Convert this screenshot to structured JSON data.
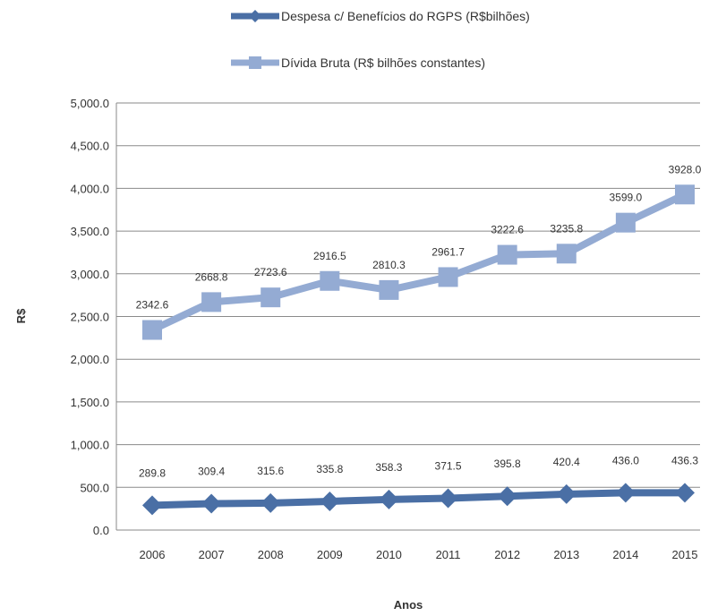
{
  "chart_data": {
    "type": "line",
    "title": "",
    "xlabel": "Anos",
    "ylabel": "R$",
    "ylim": [
      0,
      5000
    ],
    "yticks": [
      "0.0",
      "500.0",
      "1,000.0",
      "1,500.0",
      "2,000.0",
      "2,500.0",
      "3,000.0",
      "3,500.0",
      "4,000.0",
      "4,500.0",
      "5,000.0"
    ],
    "categories": [
      "2006",
      "2007",
      "2008",
      "2009",
      "2010",
      "2011",
      "2012",
      "2013",
      "2014",
      "2015"
    ],
    "grid": "horizontal",
    "legend_position": "top",
    "series": [
      {
        "name": "Despesa c/ Benefícios do RGPS (R$bilhões)",
        "color": "#4a6fa5",
        "values": [
          289.8,
          309.4,
          315.6,
          335.8,
          358.3,
          371.5,
          395.8,
          420.4,
          436.0,
          436.3
        ],
        "labels": [
          "289.8",
          "309.4",
          "315.6",
          "335.8",
          "358.3",
          "371.5",
          "395.8",
          "420.4",
          "436.0",
          "436.3"
        ]
      },
      {
        "name": "Dívida Bruta (R$ bilhões constantes)",
        "color": "#94abd3",
        "values": [
          2342.6,
          2668.8,
          2723.6,
          2916.5,
          2810.3,
          2961.7,
          3222.6,
          3235.8,
          3599.0,
          3928.0
        ],
        "labels": [
          "2342.6",
          "2668.8",
          "2723.6",
          "2916.5",
          "2810.3",
          "2961.7",
          "3222.6",
          "3235.8",
          "3599.0",
          "3928.0"
        ]
      }
    ]
  }
}
